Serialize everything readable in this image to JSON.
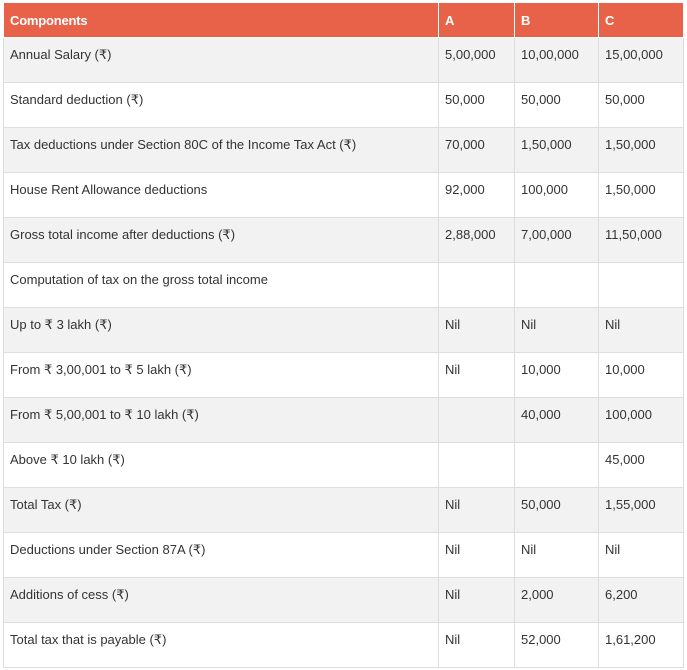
{
  "table": {
    "headers": [
      "Components",
      "A",
      "B",
      "C"
    ],
    "rows": [
      [
        "Annual Salary (₹)",
        "5,00,000",
        "10,00,000",
        "15,00,000"
      ],
      [
        "Standard deduction (₹)",
        "50,000",
        "50,000",
        "50,000"
      ],
      [
        "Tax deductions under Section 80C of the Income Tax Act (₹)",
        "70,000",
        "1,50,000",
        "1,50,000"
      ],
      [
        "House Rent Allowance deductions",
        "92,000",
        "100,000",
        "1,50,000"
      ],
      [
        "Gross total income after deductions (₹)",
        "2,88,000",
        "7,00,000",
        "11,50,000"
      ],
      [
        "Computation of tax on the gross total income",
        "",
        "",
        ""
      ],
      [
        "Up to ₹ 3 lakh (₹)",
        "Nil",
        "Nil",
        "Nil"
      ],
      [
        "From ₹ 3,00,001 to ₹ 5 lakh (₹)",
        "Nil",
        "10,000",
        "10,000"
      ],
      [
        "From ₹ 5,00,001 to ₹ 10 lakh (₹)",
        "",
        "40,000",
        "100,000"
      ],
      [
        "Above ₹ 10 lakh (₹)",
        "",
        "",
        "45,000"
      ],
      [
        "Total Tax (₹)",
        "Nil",
        "50,000",
        "1,55,000"
      ],
      [
        "Deductions under Section 87A (₹)",
        "Nil",
        "Nil",
        "Nil"
      ],
      [
        "Additions of cess (₹)",
        "Nil",
        "2,000",
        "6,200"
      ],
      [
        "Total tax that is payable (₹)",
        "Nil",
        "52,000",
        "1,61,200"
      ]
    ]
  },
  "colors": {
    "header_bg": "#e8624a",
    "header_text": "#ffffff",
    "row_alt_bg": "#f2f2f2",
    "border": "#dddddd"
  }
}
